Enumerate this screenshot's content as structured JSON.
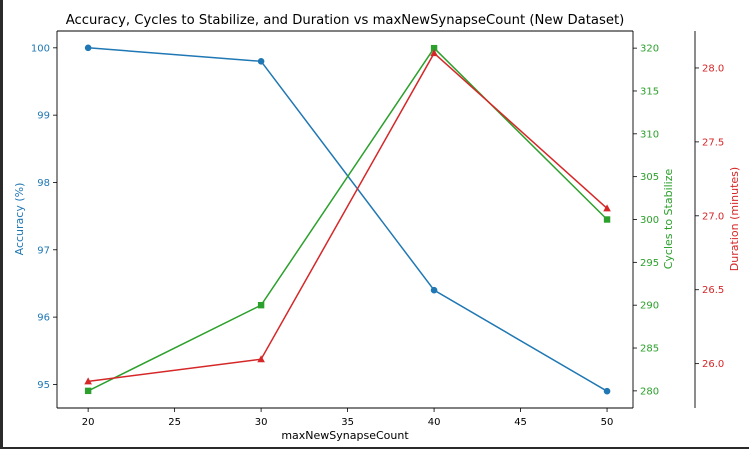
{
  "chart_data": {
    "type": "line",
    "title": "Accuracy, Cycles to Stabilize, and Duration vs maxNewSynapseCount (New Dataset)",
    "xlabel": "maxNewSynapseCount",
    "x": [
      20,
      30,
      40,
      50
    ],
    "xlim": [
      18.2,
      51.5
    ],
    "xticks": [
      20,
      25,
      30,
      35,
      40,
      45,
      50
    ],
    "grid": false,
    "axes": [
      {
        "id": "accuracy",
        "label": "Accuracy (%)",
        "side": "left",
        "color": "#1f77b4",
        "ylim": [
          94.65,
          100.25
        ],
        "ticks": [
          95,
          96,
          97,
          98,
          99,
          100
        ]
      },
      {
        "id": "cycles",
        "label": "Cycles to Stabilize",
        "side": "right",
        "color": "#2ca02c",
        "ylim": [
          278,
          322
        ],
        "ticks": [
          280,
          285,
          290,
          295,
          300,
          305,
          310,
          315,
          320
        ]
      },
      {
        "id": "duration",
        "label": "Duration (minutes)",
        "side": "right-outer",
        "color": "#d62728",
        "ylim": [
          25.7,
          28.25
        ],
        "ticks": [
          "26.0",
          "26.5",
          "27.0",
          "27.5",
          "28.0"
        ]
      }
    ],
    "series": [
      {
        "axis": "accuracy",
        "marker": "circle",
        "color": "#1f77b4",
        "values": [
          100.0,
          99.8,
          96.4,
          94.9
        ]
      },
      {
        "axis": "cycles",
        "marker": "square",
        "color": "#2ca02c",
        "values": [
          280,
          290,
          320,
          300
        ]
      },
      {
        "axis": "duration",
        "marker": "triangle",
        "color": "#d62728",
        "values": [
          25.88,
          26.03,
          28.1,
          27.05
        ]
      }
    ]
  }
}
